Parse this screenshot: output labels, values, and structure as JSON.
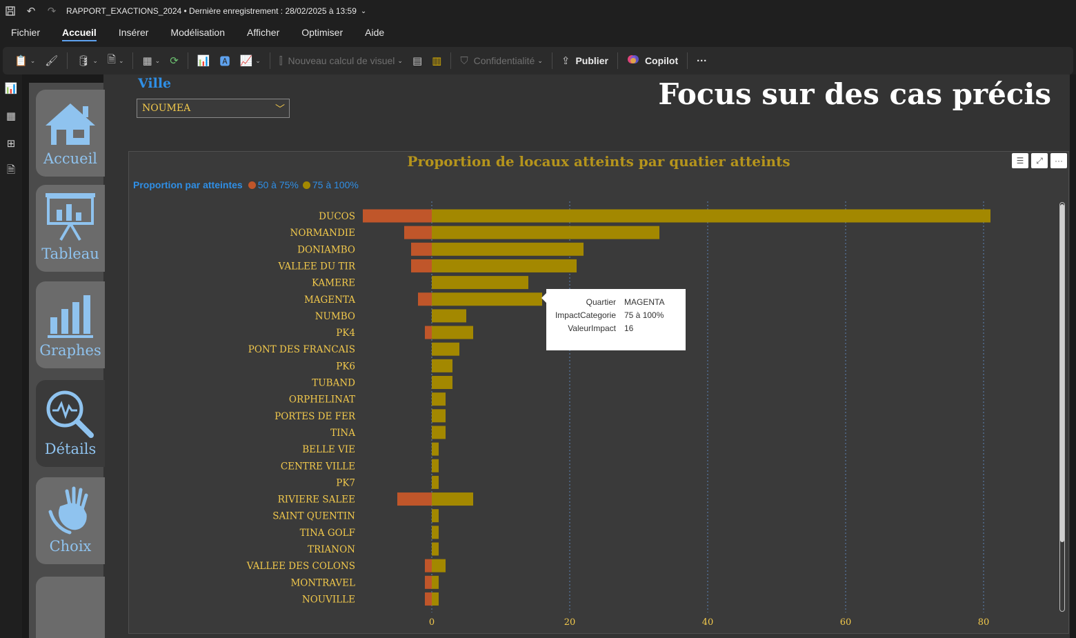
{
  "titlebar": {
    "title": "RAPPORT_EXACTIONS_2024 • Dernière enregistrement : 28/02/2025 à 13:59"
  },
  "menu": {
    "items": [
      "Fichier",
      "Accueil",
      "Insérer",
      "Modélisation",
      "Afficher",
      "Optimiser",
      "Aide"
    ],
    "active": "Accueil"
  },
  "ribbon": {
    "new_visual_calc": "Nouveau calcul de visuel",
    "confidentiality": "Confidentialité",
    "publish": "Publier",
    "copilot": "Copilot",
    "more": "···"
  },
  "nav": {
    "items": [
      {
        "label": "Accueil",
        "icon": "home-icon"
      },
      {
        "label": "Tableau",
        "icon": "presentation-board-icon"
      },
      {
        "label": "Graphes",
        "icon": "bar-chart-icon"
      },
      {
        "label": "Détails",
        "icon": "magnifier-pulse-icon"
      },
      {
        "label": "Choix",
        "icon": "hands-icon"
      }
    ],
    "selected": "Détails"
  },
  "filter": {
    "label": "Ville",
    "value": "NOUMEA"
  },
  "page": {
    "title": "Focus sur des cas précis"
  },
  "legend": {
    "title": "Proportion par atteintes",
    "items": [
      {
        "label": "50 à 75%",
        "color": "#c0562a"
      },
      {
        "label": "75 à 100%",
        "color": "#a38800"
      }
    ]
  },
  "chart_data": {
    "type": "bar",
    "orientation": "horizontal-diverging",
    "title": "Proportion de locaux atteints par quatier atteints",
    "categories": [
      "DUCOS",
      "NORMANDIE",
      "DONIAMBO",
      "VALLEE DU TIR",
      "KAMERE",
      "MAGENTA",
      "NUMBO",
      "PK4",
      "PONT DES FRANCAIS",
      "PK6",
      "TUBAND",
      "ORPHELINAT",
      "PORTES DE FER",
      "TINA",
      "BELLE VIE",
      "CENTRE VILLE",
      "PK7",
      "RIVIERE SALEE",
      "SAINT QUENTIN",
      "TINA GOLF",
      "TRIANON",
      "VALLEE DES COLONS",
      "MONTRAVEL",
      "NOUVILLE"
    ],
    "series": [
      {
        "name": "50 à 75%",
        "color": "#c0562a",
        "values": [
          -10,
          -4,
          -3,
          -3,
          0,
          -2,
          0,
          -1,
          0,
          0,
          0,
          0,
          0,
          0,
          0,
          0,
          0,
          -5,
          0,
          0,
          0,
          -1,
          -1,
          -1
        ]
      },
      {
        "name": "75 à 100%",
        "color": "#a38800",
        "values": [
          81,
          33,
          22,
          21,
          14,
          16,
          5,
          6,
          4,
          3,
          3,
          2,
          2,
          2,
          1,
          1,
          1,
          6,
          1,
          1,
          1,
          2,
          1,
          1
        ]
      }
    ],
    "xticks": [
      0,
      20,
      40,
      60,
      80
    ],
    "xlim": [
      -10,
      81
    ],
    "grid": "vertical-dotted"
  },
  "tooltip": {
    "rows": [
      {
        "key": "Quartier",
        "value": "MAGENTA"
      },
      {
        "key": "ImpactCategorie",
        "value": "75 à 100%"
      },
      {
        "key": "ValeurImpact",
        "value": "16"
      }
    ]
  }
}
